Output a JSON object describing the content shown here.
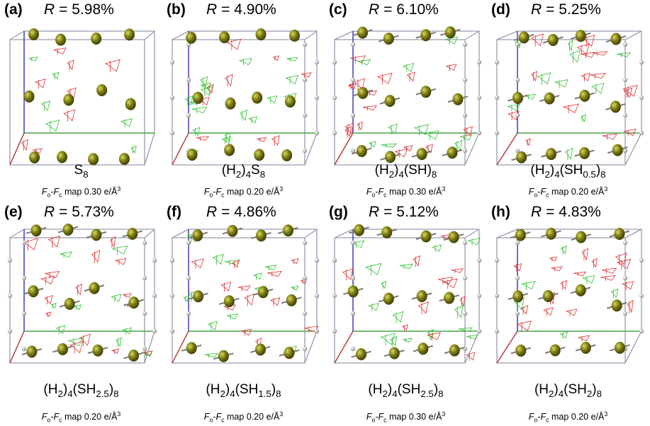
{
  "panels": [
    {
      "label": "(a)",
      "r_symbol": "R",
      "r_text": "= 5.98%",
      "formula": [
        {
          "text": "S"
        },
        {
          "sub": "8"
        }
      ],
      "caption": [
        {
          "i": "F"
        },
        {
          "sub": "o"
        },
        {
          "text": "-"
        },
        {
          "i": "F"
        },
        {
          "sub": "c"
        },
        {
          "text": " map 0.30 e/Å"
        },
        {
          "sup": "3"
        }
      ]
    },
    {
      "label": "(b)",
      "r_symbol": "R",
      "r_text": "= 4.90%",
      "formula": [
        {
          "text": "(H"
        },
        {
          "sub": "2"
        },
        {
          "text": ")"
        },
        {
          "sub": "4"
        },
        {
          "text": "S"
        },
        {
          "sub": "8"
        }
      ],
      "caption": [
        {
          "i": "F"
        },
        {
          "sub": "o"
        },
        {
          "text": "-"
        },
        {
          "i": "F"
        },
        {
          "sub": "c"
        },
        {
          "text": " map 0.20 e/Å"
        },
        {
          "sup": "3"
        }
      ]
    },
    {
      "label": "(c)",
      "r_symbol": "R",
      "r_text": "= 6.10%",
      "formula": [
        {
          "text": "(H"
        },
        {
          "sub": "2"
        },
        {
          "text": ")"
        },
        {
          "sub": "4"
        },
        {
          "text": "(SH)"
        },
        {
          "sub": "8"
        }
      ],
      "caption": [
        {
          "i": "F"
        },
        {
          "sub": "o"
        },
        {
          "text": "-"
        },
        {
          "i": "F"
        },
        {
          "sub": "c"
        },
        {
          "text": " map 0.30 e/Å"
        },
        {
          "sup": "3"
        }
      ]
    },
    {
      "label": "(d)",
      "r_symbol": "R",
      "r_text": "= 5.25%",
      "formula": [
        {
          "text": "(H"
        },
        {
          "sub": "2"
        },
        {
          "text": ")"
        },
        {
          "sub": "4"
        },
        {
          "text": "(SH"
        },
        {
          "sub": "0.5"
        },
        {
          "text": ")"
        },
        {
          "sub": "8"
        }
      ],
      "caption": [
        {
          "i": "F"
        },
        {
          "sub": "o"
        },
        {
          "text": "-"
        },
        {
          "i": "F"
        },
        {
          "sub": "c"
        },
        {
          "text": " map 0.20 e/Å"
        },
        {
          "sup": "3"
        }
      ]
    },
    {
      "label": "(e)",
      "r_symbol": "R",
      "r_text": "= 5.73%",
      "formula": [
        {
          "text": "(H"
        },
        {
          "sub": "2"
        },
        {
          "text": ")"
        },
        {
          "sub": "4"
        },
        {
          "text": "(SH"
        },
        {
          "sub": "2.5"
        },
        {
          "text": ")"
        },
        {
          "sub": "8"
        }
      ],
      "caption": [
        {
          "i": "F"
        },
        {
          "sub": "o"
        },
        {
          "text": "-"
        },
        {
          "i": "F"
        },
        {
          "sub": "c"
        },
        {
          "text": " map 0.20 e/Å"
        },
        {
          "sup": "3"
        }
      ]
    },
    {
      "label": "(f)",
      "r_symbol": "R",
      "r_text": "= 4.86%",
      "formula": [
        {
          "text": "(H"
        },
        {
          "sub": "2"
        },
        {
          "text": ")"
        },
        {
          "sub": "4"
        },
        {
          "text": "(SH"
        },
        {
          "sub": "1.5"
        },
        {
          "text": ")"
        },
        {
          "sub": "8"
        }
      ],
      "caption": [
        {
          "i": "F"
        },
        {
          "sub": "o"
        },
        {
          "text": "-"
        },
        {
          "i": "F"
        },
        {
          "sub": "c"
        },
        {
          "text": " map 0.20 e/Å"
        },
        {
          "sup": "3"
        }
      ]
    },
    {
      "label": "(g)",
      "r_symbol": "R",
      "r_text": "= 5.12%",
      "formula": [
        {
          "text": "(H"
        },
        {
          "sub": "2"
        },
        {
          "text": ")"
        },
        {
          "sub": "4"
        },
        {
          "text": "(SH"
        },
        {
          "sub": "2.5"
        },
        {
          "text": ")"
        },
        {
          "sub": "8"
        }
      ],
      "caption": [
        {
          "i": "F"
        },
        {
          "sub": "o"
        },
        {
          "text": "-"
        },
        {
          "i": "F"
        },
        {
          "sub": "c"
        },
        {
          "text": " map 0.30 e/Å"
        },
        {
          "sup": "3"
        }
      ]
    },
    {
      "label": "(h)",
      "r_symbol": "R",
      "r_text": "= 4.83%",
      "formula": [
        {
          "text": "(H"
        },
        {
          "sub": "2"
        },
        {
          "text": ")"
        },
        {
          "sub": "4"
        },
        {
          "text": "(SH"
        },
        {
          "sub": "2"
        },
        {
          "text": ")"
        },
        {
          "sub": "8"
        }
      ],
      "caption": [
        {
          "i": "F"
        },
        {
          "sub": "o"
        },
        {
          "text": "-"
        },
        {
          "i": "F"
        },
        {
          "sub": "c"
        },
        {
          "text": " map 0.20 e/Å"
        },
        {
          "sup": "3"
        }
      ]
    }
  ]
}
